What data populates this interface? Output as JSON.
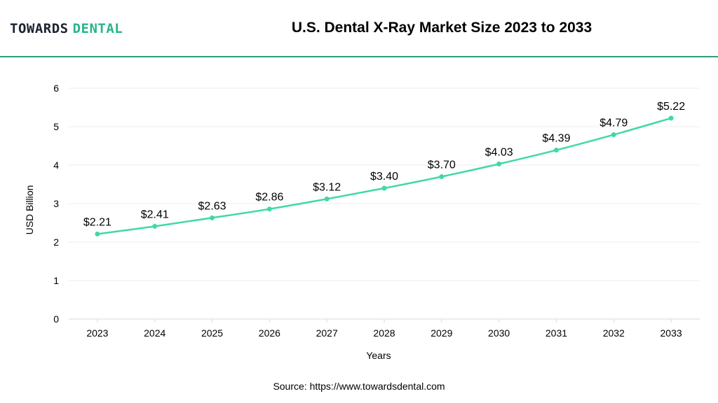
{
  "header": {
    "logo_part1": "TOWARDS",
    "logo_part2": "DENTAL",
    "title": "U.S. Dental X-Ray Market Size 2023 to 2033"
  },
  "footer": {
    "source": "Source: https://www.towardsdental.com"
  },
  "colors": {
    "accent": "#2e9e78",
    "line": "#3fd9a8",
    "grid": "#eeeeee"
  },
  "chart_data": {
    "type": "line",
    "title": "U.S. Dental X-Ray Market Size 2023 to 2033",
    "xlabel": "Years",
    "ylabel": "USD Billion",
    "x": [
      "2023",
      "2024",
      "2025",
      "2026",
      "2027",
      "2028",
      "2029",
      "2030",
      "2031",
      "2032",
      "2033"
    ],
    "series": [
      {
        "values": [
          2.21,
          2.41,
          2.63,
          2.86,
          3.12,
          3.4,
          3.7,
          4.03,
          4.39,
          4.79,
          5.22
        ],
        "labels": [
          "$2.21",
          "$2.41",
          "$2.63",
          "$2.86",
          "$3.12",
          "$3.40",
          "$3.70",
          "$4.03",
          "$4.39",
          "$4.79",
          "$5.22"
        ]
      }
    ],
    "ylim": [
      0,
      6
    ],
    "yticks": [
      0,
      1,
      2,
      3,
      4,
      5,
      6
    ],
    "grid": true,
    "legend": "none"
  }
}
